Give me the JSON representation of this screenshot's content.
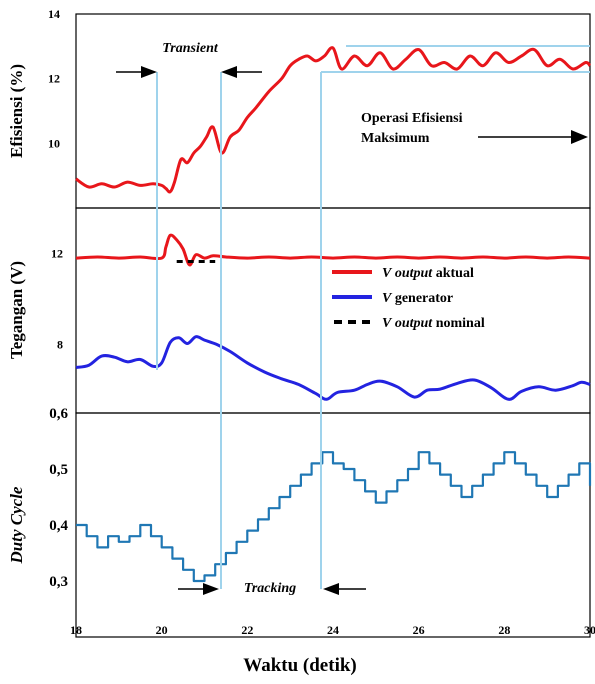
{
  "chart_data": [
    {
      "type": "line",
      "ylabel": "Efisiensi (%)",
      "xlim": [
        18,
        30
      ],
      "ylim": [
        8,
        14
      ],
      "yticks": [
        10,
        12,
        14
      ],
      "series": [
        {
          "name": "",
          "color": "#e8161b",
          "x": [
            18,
            18.3,
            18.6,
            18.9,
            19.2,
            19.5,
            19.8,
            20.0,
            20.1,
            20.2,
            20.3,
            20.45,
            20.6,
            20.75,
            20.9,
            21.05,
            21.2,
            21.4,
            21.6,
            21.8,
            22.0,
            22.2,
            22.5,
            22.8,
            23.0,
            23.2,
            23.4,
            23.6,
            23.8,
            24.0,
            24.2,
            24.5,
            24.8,
            25.1,
            25.4,
            25.7,
            26.0,
            26.3,
            26.6,
            26.9,
            27.2,
            27.5,
            27.8,
            28.1,
            28.4,
            28.7,
            29.0,
            29.3,
            29.6,
            29.9,
            30
          ],
          "y": [
            8.9,
            8.65,
            8.75,
            8.65,
            8.8,
            8.7,
            8.75,
            8.7,
            8.6,
            8.5,
            8.8,
            9.5,
            9.4,
            9.7,
            9.9,
            10.2,
            10.5,
            9.7,
            10.2,
            10.4,
            10.8,
            11.1,
            11.6,
            12.0,
            12.4,
            12.6,
            12.7,
            12.55,
            12.7,
            12.95,
            12.3,
            12.7,
            12.4,
            12.8,
            12.3,
            12.6,
            12.9,
            12.4,
            12.5,
            12.3,
            12.7,
            12.4,
            12.8,
            12.5,
            12.7,
            12.9,
            12.4,
            12.6,
            12.3,
            12.5,
            12.4
          ]
        }
      ]
    },
    {
      "type": "line",
      "ylabel": "Tegangan (V)",
      "xlim": [
        18,
        30
      ],
      "ylim": [
        5,
        14
      ],
      "yticks": [
        8,
        12
      ],
      "series": [
        {
          "name": "V output aktual",
          "color": "#e8161b",
          "x": [
            18,
            18.5,
            19,
            19.5,
            20.0,
            20.1,
            20.2,
            20.35,
            20.5,
            20.65,
            20.8,
            21.0,
            21.2,
            21.5,
            22,
            22.5,
            23,
            23.5,
            24,
            24.5,
            25,
            25.5,
            26,
            26.5,
            27,
            27.5,
            28,
            28.5,
            29,
            29.5,
            30
          ],
          "y": [
            11.8,
            11.85,
            11.8,
            11.85,
            11.8,
            12.3,
            12.8,
            12.6,
            12.2,
            11.5,
            11.95,
            11.8,
            11.9,
            11.85,
            11.8,
            11.85,
            11.8,
            11.85,
            11.8,
            11.85,
            11.8,
            11.85,
            11.8,
            11.85,
            11.8,
            11.85,
            11.8,
            11.85,
            11.8,
            11.85,
            11.8
          ]
        },
        {
          "name": "V generator",
          "color": "#2323e0",
          "x": [
            18,
            18.3,
            18.6,
            18.9,
            19.2,
            19.5,
            19.8,
            20.0,
            20.2,
            20.4,
            20.6,
            20.8,
            21.0,
            21.3,
            21.6,
            22.0,
            22.4,
            22.8,
            23.2,
            23.6,
            23.85,
            24.1,
            24.5,
            24.8,
            25.1,
            25.5,
            25.9,
            26.2,
            26.5,
            26.9,
            27.3,
            27.7,
            28.1,
            28.4,
            28.8,
            29.2,
            29.6,
            29.8,
            30
          ],
          "y": [
            7.0,
            7.1,
            7.5,
            7.45,
            7.25,
            7.35,
            7.05,
            7.2,
            8.1,
            8.3,
            8.05,
            8.35,
            8.2,
            8.0,
            7.7,
            7.2,
            6.8,
            6.5,
            6.25,
            5.85,
            5.6,
            5.9,
            6.0,
            6.25,
            6.4,
            6.15,
            5.7,
            6.0,
            6.05,
            6.3,
            6.45,
            6.1,
            5.6,
            5.95,
            6.15,
            6.0,
            6.2,
            6.35,
            6.25
          ]
        },
        {
          "name": "V output nominal",
          "color": "#000000",
          "x": [
            20.35,
            21.25
          ],
          "y": [
            11.65,
            11.65
          ]
        }
      ]
    },
    {
      "type": "line",
      "ylabel": "Duty Cycle",
      "xlabel": "Waktu (detik)",
      "xlim": [
        18,
        30
      ],
      "ylim": [
        0.2,
        0.6
      ],
      "yticks": [
        "0,3",
        "0,4",
        "0,5",
        "0,6"
      ],
      "xticks": [
        "18",
        "20",
        "22",
        "24",
        "26",
        "28",
        "30"
      ],
      "series": [
        {
          "name": "",
          "color": "#1f77b4",
          "step": true,
          "x": [
            18,
            18.25,
            18.5,
            18.75,
            19.0,
            19.25,
            19.5,
            19.75,
            20.0,
            20.25,
            20.5,
            20.75,
            21.0,
            21.25,
            21.5,
            21.75,
            22.0,
            22.25,
            22.5,
            22.75,
            23.0,
            23.25,
            23.5,
            23.75,
            24.0,
            24.25,
            24.5,
            24.75,
            25.0,
            25.25,
            25.5,
            25.75,
            26.0,
            26.25,
            26.5,
            26.75,
            27.0,
            27.25,
            27.5,
            27.75,
            28.0,
            28.25,
            28.5,
            28.75,
            29.0,
            29.25,
            29.5,
            29.75,
            30.0
          ],
          "y": [
            0.4,
            0.38,
            0.36,
            0.38,
            0.37,
            0.38,
            0.4,
            0.38,
            0.36,
            0.34,
            0.32,
            0.3,
            0.31,
            0.33,
            0.35,
            0.37,
            0.39,
            0.41,
            0.43,
            0.45,
            0.47,
            0.49,
            0.51,
            0.53,
            0.51,
            0.5,
            0.48,
            0.46,
            0.44,
            0.46,
            0.48,
            0.5,
            0.53,
            0.51,
            0.49,
            0.47,
            0.45,
            0.47,
            0.49,
            0.51,
            0.53,
            0.51,
            0.49,
            0.47,
            0.45,
            0.47,
            0.49,
            0.51,
            0.47
          ]
        }
      ]
    }
  ],
  "annotations": {
    "transient": "Transient",
    "operasi_1": "Operasi Efisiensi",
    "operasi_2": "Maksimum",
    "tracking": "Tracking",
    "marker_color": "#9fd3ec"
  },
  "legend": {
    "aktual_v": "V",
    "aktual_output": "output",
    "aktual_rest": "aktual",
    "gen_v": "V",
    "gen_rest": "generator",
    "nom_v": "V",
    "nom_output": "output",
    "nom_rest": "nominal"
  }
}
